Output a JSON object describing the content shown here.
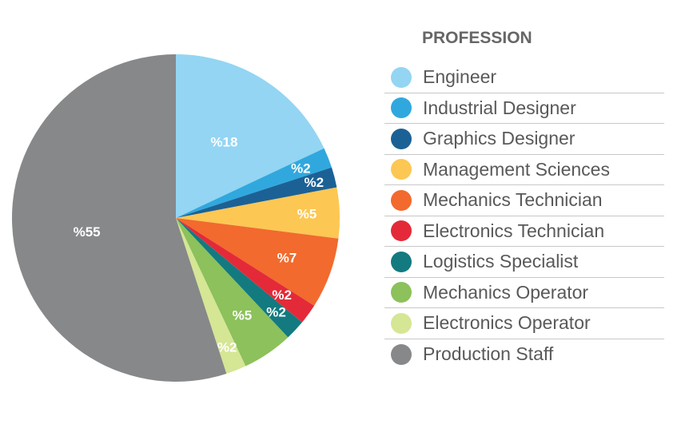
{
  "chart_data": {
    "type": "pie",
    "legend_title": "PROFESSION",
    "legend_position": "right",
    "label_format": "prefix-percent",
    "slices": [
      {
        "name": "Engineer",
        "value": 18,
        "label": "%18",
        "color": "#93d5f3"
      },
      {
        "name": "Industrial Designer",
        "value": 2,
        "label": "%2",
        "color": "#30a8de"
      },
      {
        "name": "Graphics Designer",
        "value": 2,
        "label": "%2",
        "color": "#1c6195"
      },
      {
        "name": "Management Sciences",
        "value": 5,
        "label": "%5",
        "color": "#fcc753"
      },
      {
        "name": "Mechanics Technician",
        "value": 7,
        "label": "%7",
        "color": "#f26a2d"
      },
      {
        "name": "Electronics Technician",
        "value": 2,
        "label": "%2",
        "color": "#e42a38"
      },
      {
        "name": "Logistics Specialist",
        "value": 2,
        "label": "%2",
        "color": "#137a80"
      },
      {
        "name": "Mechanics Operator",
        "value": 5,
        "label": "%5",
        "color": "#8cc15b"
      },
      {
        "name": "Electronics Operator",
        "value": 2,
        "label": "%2",
        "color": "#d5e695"
      },
      {
        "name": "Production Staff",
        "value": 55,
        "label": "%55",
        "color": "#878889"
      }
    ]
  }
}
